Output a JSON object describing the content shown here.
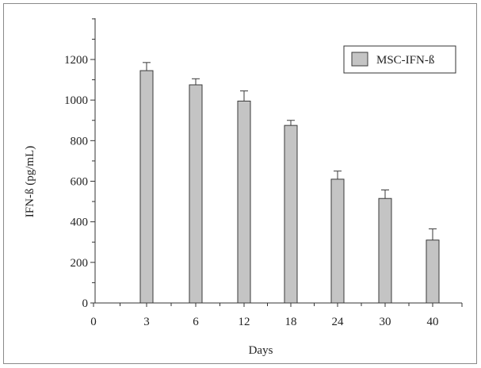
{
  "chart_data": {
    "type": "bar",
    "categories": [
      "3",
      "6",
      "12",
      "18",
      "24",
      "30",
      "40"
    ],
    "x_ticks": [
      "0",
      "3",
      "6",
      "12",
      "18",
      "24",
      "30",
      "40"
    ],
    "series": [
      {
        "name": "MSC-IFN-ß",
        "values": [
          1145,
          1075,
          995,
          875,
          610,
          515,
          310
        ],
        "error": [
          40,
          30,
          50,
          25,
          40,
          42,
          55
        ]
      }
    ],
    "xlabel": "Days",
    "ylabel": "IFN-ß (pg/mL)",
    "ylim": [
      0,
      1400
    ],
    "y_ticks": [
      0,
      200,
      400,
      600,
      800,
      1000,
      1200
    ],
    "legend": "top-right",
    "grid": false,
    "colors": {
      "bar_fill": "#c4c4c4",
      "bar_stroke": "#3a3a3a",
      "axis": "#333333"
    }
  }
}
